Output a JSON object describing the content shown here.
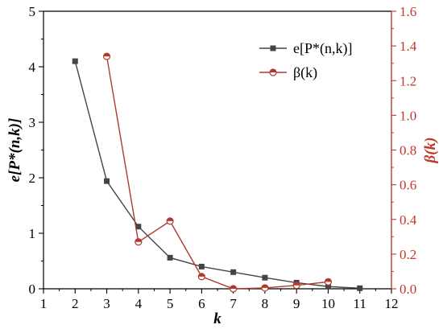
{
  "chart_data": {
    "type": "line",
    "x_axis": {
      "label": "k",
      "min": 1,
      "max": 12,
      "ticks": [
        1,
        2,
        3,
        4,
        5,
        6,
        7,
        8,
        9,
        10,
        11,
        12
      ]
    },
    "y_left": {
      "label": "e[P*(n,k)]",
      "min": 0,
      "max": 5,
      "ticks": [
        "0",
        "1",
        "2",
        "3",
        "4",
        "5"
      ]
    },
    "y_right": {
      "label": "β(k)",
      "min": 0,
      "max": 1.6,
      "ticks": [
        "0.0",
        "0.2",
        "0.4",
        "0.6",
        "0.8",
        "1.0",
        "1.2",
        "1.4",
        "1.6"
      ],
      "color": "#c0392b"
    },
    "series": [
      {
        "name": "e[P*(n,k)]",
        "axis": "left",
        "color": "#444444",
        "marker": "square",
        "x": [
          2,
          3,
          4,
          5,
          6,
          7,
          8,
          9,
          10,
          11
        ],
        "y": [
          4.1,
          1.94,
          1.12,
          0.56,
          0.4,
          0.3,
          0.2,
          0.11,
          0.04,
          0.01
        ]
      },
      {
        "name": "β(k)",
        "axis": "right",
        "color": "#b03a2e",
        "marker": "circle",
        "x": [
          3,
          4,
          5,
          6,
          7,
          8,
          9,
          10
        ],
        "y": [
          1.34,
          0.27,
          0.39,
          0.07,
          0.0,
          0.005,
          0.02,
          0.04
        ]
      }
    ],
    "legend_position": "top-right"
  }
}
